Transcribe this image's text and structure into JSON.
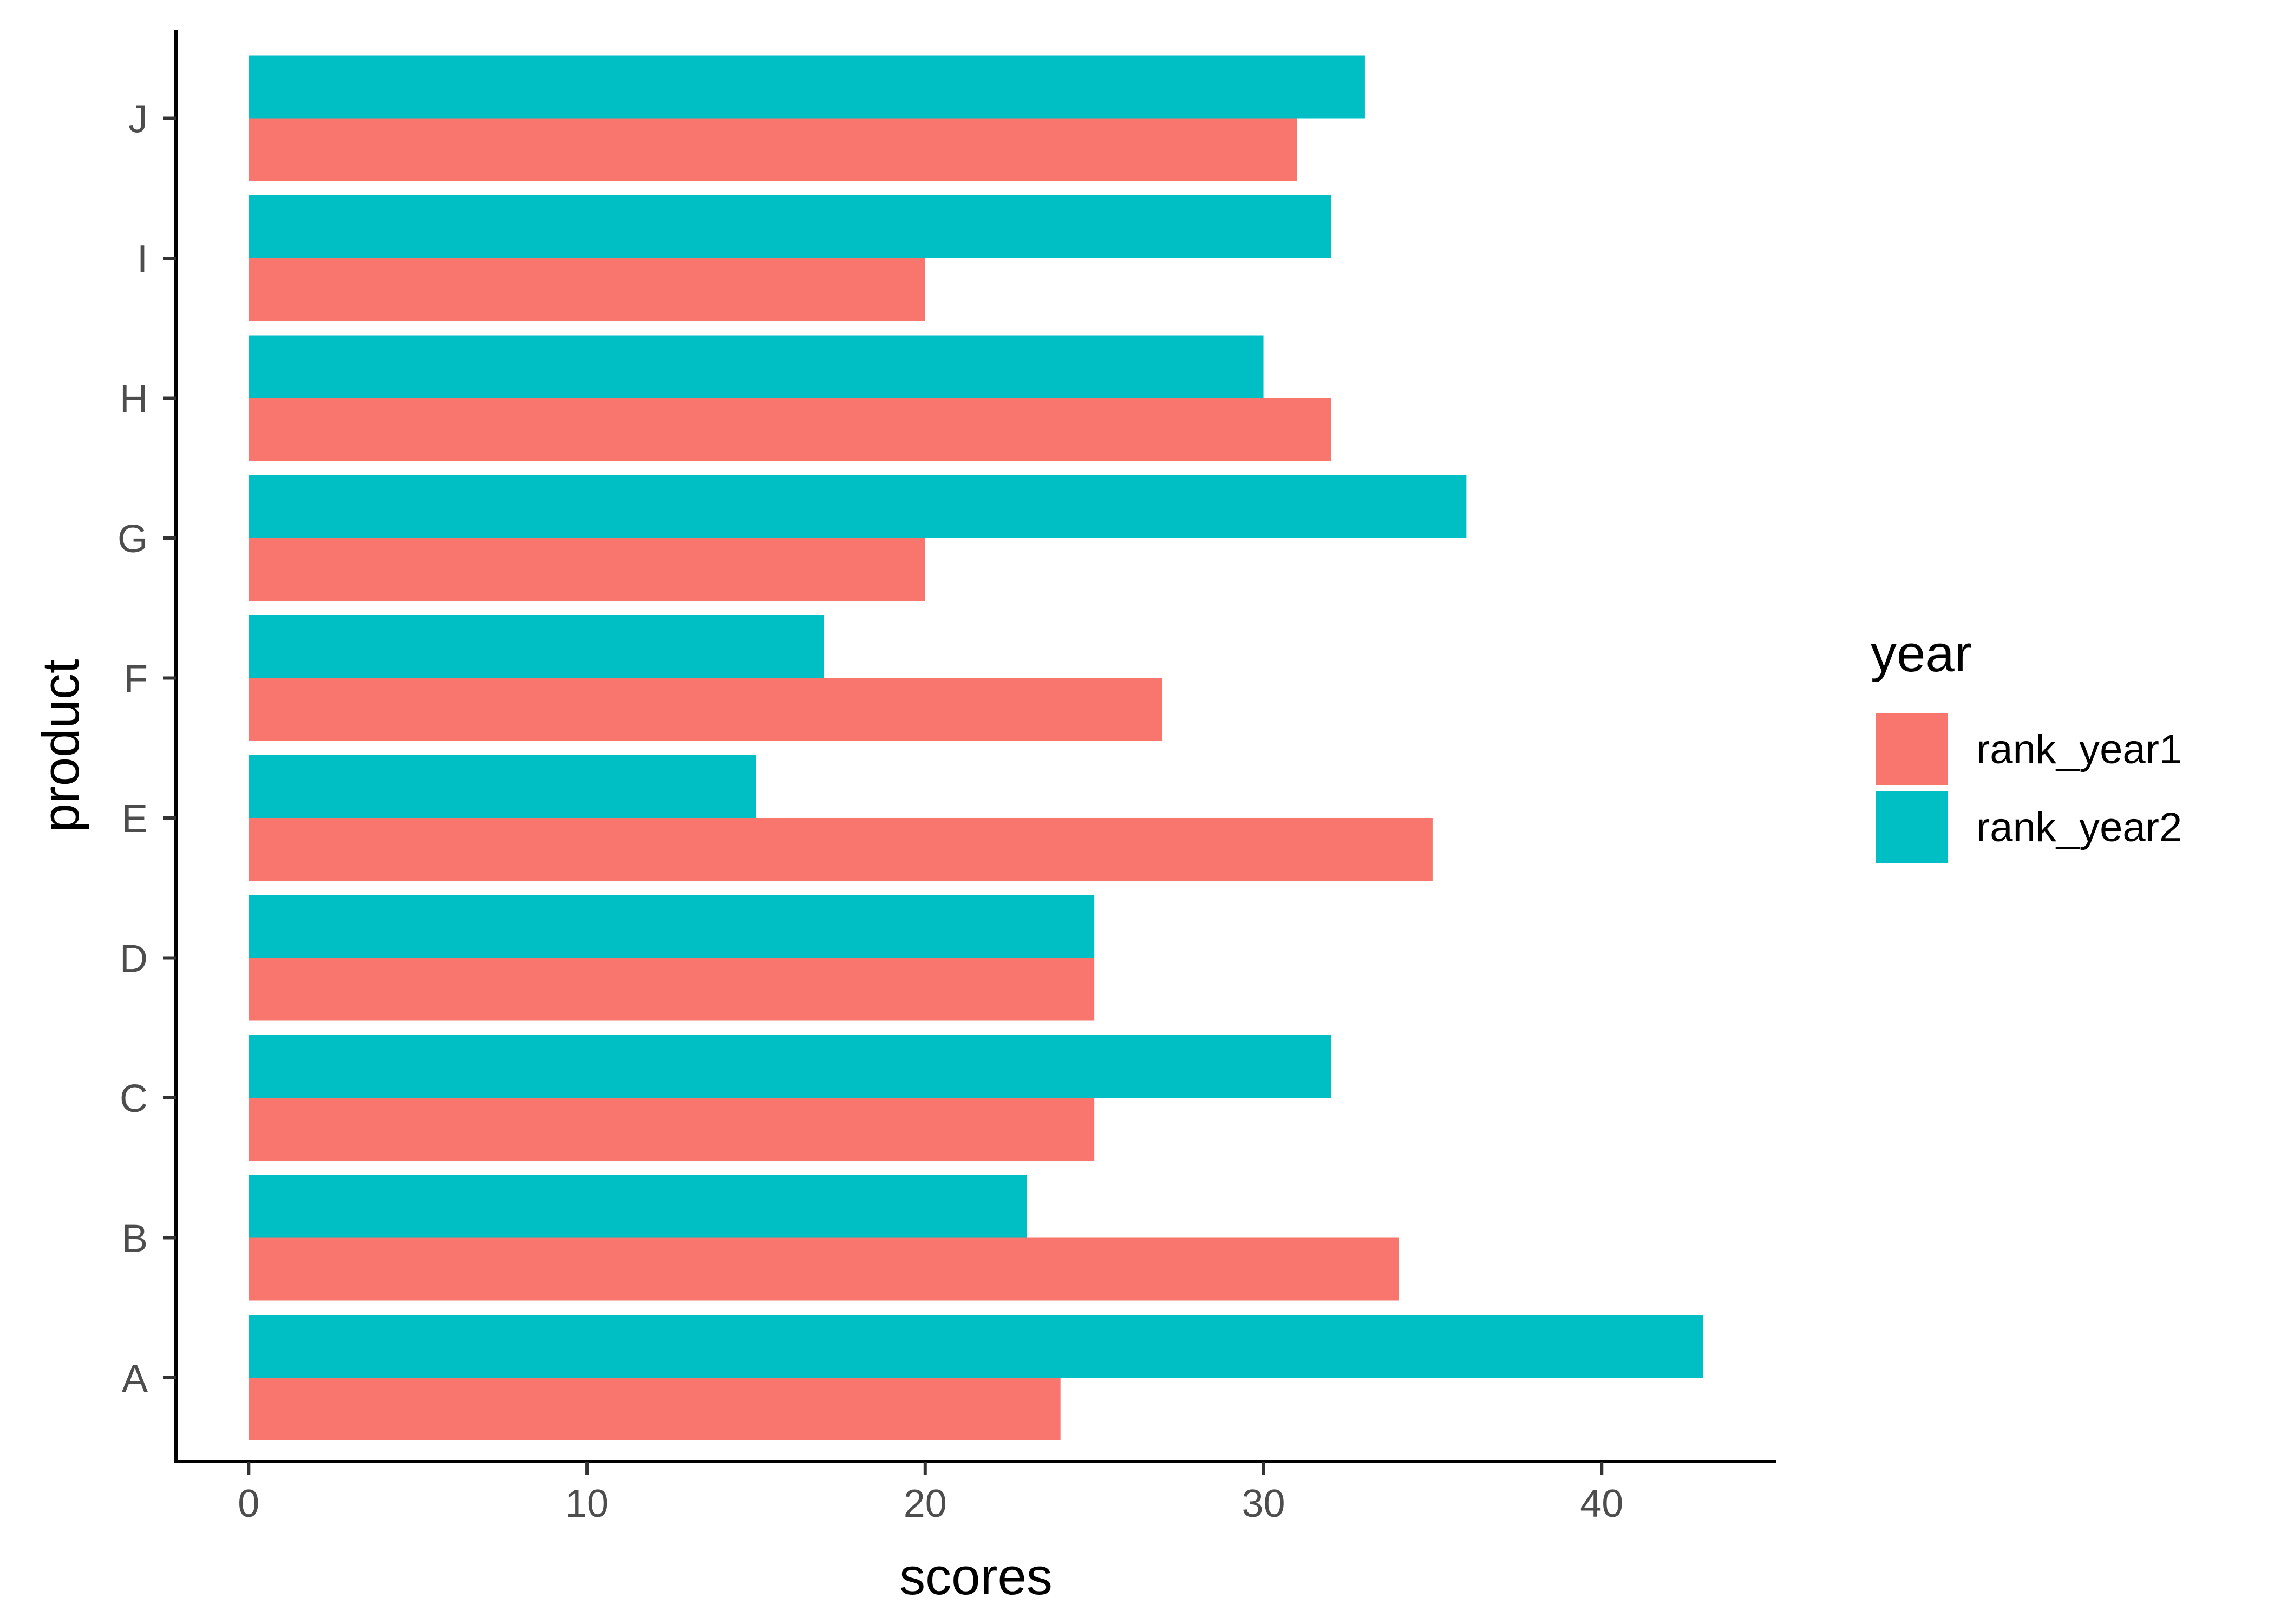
{
  "chart_data": {
    "type": "bar",
    "orientation": "horizontal",
    "title": "",
    "xlabel": "scores",
    "ylabel": "product",
    "xlim": [
      -2.15,
      45.15
    ],
    "x_ticks": [
      0,
      10,
      20,
      30,
      40
    ],
    "categories": [
      "A",
      "B",
      "C",
      "D",
      "E",
      "F",
      "G",
      "H",
      "I",
      "J"
    ],
    "series": [
      {
        "name": "rank_year1",
        "color": "#F8766D",
        "values": [
          24,
          34,
          25,
          25,
          35,
          27,
          20,
          32,
          20,
          31
        ]
      },
      {
        "name": "rank_year2",
        "color": "#00BFC4",
        "values": [
          43,
          23,
          32,
          25,
          15,
          17,
          36,
          30,
          32,
          33
        ]
      }
    ],
    "legend": {
      "title": "year",
      "position": "right"
    },
    "grid": false
  }
}
